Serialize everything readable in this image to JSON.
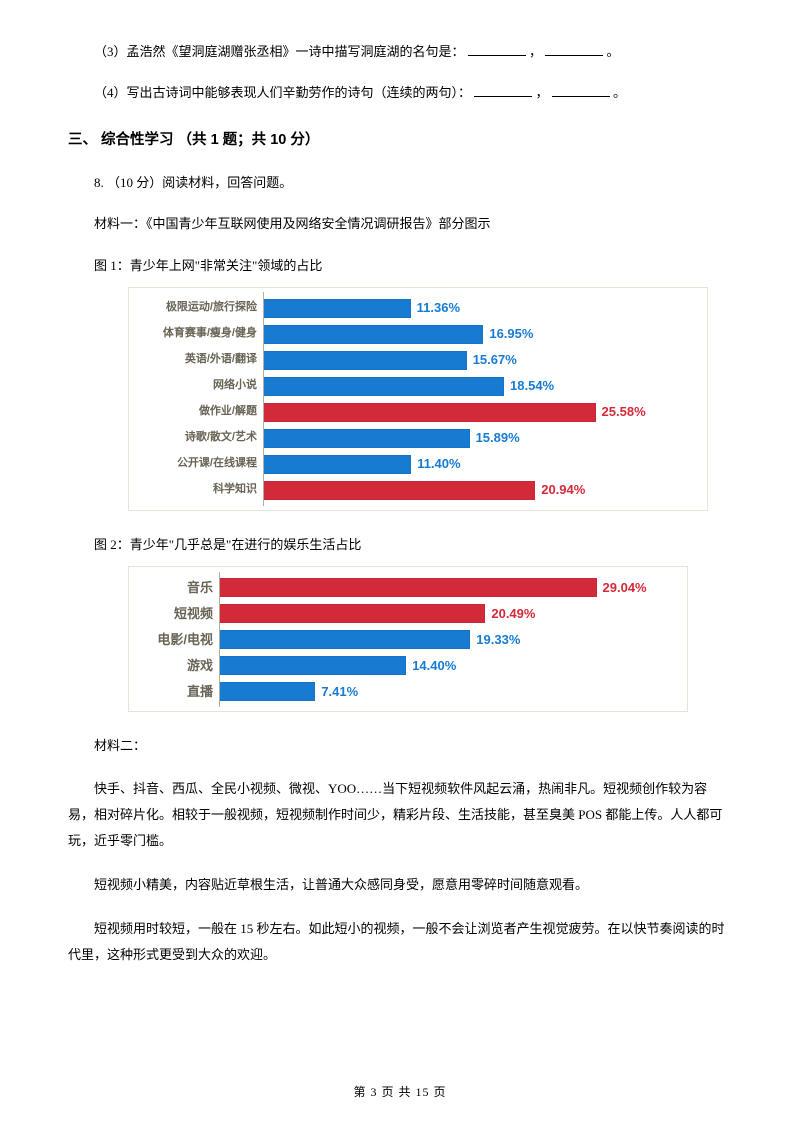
{
  "q3": "（3）孟浩然《望洞庭湖赠张丞相》一诗中描写洞庭湖的名句是：",
  "q4": "（4）写出古诗词中能够表现人们辛勤劳作的诗句（连续的两句）：",
  "punct_comma": "，",
  "punct_period": "。",
  "section3": "三、 综合性学习 （共 1 题；共 10 分）",
  "q8_head": "8. （10 分）阅读材料，回答问题。",
  "mat1": "材料一：《中国青少年互联网使用及网络安全情况调研报告》部分图示",
  "fig1_caption": "图 1：青少年上网\"非常关注\"领域的占比",
  "fig2_caption": "图 2：青少年\"几乎总是\"在进行的娱乐生活占比",
  "chart1": {
    "scale": 13,
    "max_label_width": 0,
    "rows": [
      {
        "label": "极限运动/旅行探险",
        "value": 11.36,
        "color": "#177bd2",
        "pct_color": "#177bd2"
      },
      {
        "label": "体育赛事/瘦身/健身",
        "value": 16.95,
        "color": "#177bd2",
        "pct_color": "#177bd2"
      },
      {
        "label": "英语/外语/翻译",
        "value": 15.67,
        "color": "#177bd2",
        "pct_color": "#177bd2"
      },
      {
        "label": "网络小说",
        "value": 18.54,
        "color": "#177bd2",
        "pct_color": "#177bd2"
      },
      {
        "label": "做作业/解题",
        "value": 25.58,
        "color": "#d32a3a",
        "pct_color": "#d32a3a"
      },
      {
        "label": "诗歌/散文/艺术",
        "value": 15.89,
        "color": "#177bd2",
        "pct_color": "#177bd2"
      },
      {
        "label": "公开课/在线课程",
        "value": 11.4,
        "color": "#177bd2",
        "pct_color": "#177bd2",
        "fmt": "11.40%"
      },
      {
        "label": "科学知识",
        "value": 20.94,
        "color": "#d32a3a",
        "pct_color": "#d32a3a"
      }
    ]
  },
  "chart2": {
    "scale": 13,
    "rows": [
      {
        "label": "音乐",
        "value": 29.04,
        "color": "#d32a3a",
        "pct_color": "#d32a3a"
      },
      {
        "label": "短视频",
        "value": 20.49,
        "color": "#d32a3a",
        "pct_color": "#d32a3a"
      },
      {
        "label": "电影/电视",
        "value": 19.33,
        "color": "#177bd2",
        "pct_color": "#177bd2"
      },
      {
        "label": "游戏",
        "value": 14.4,
        "color": "#177bd2",
        "pct_color": "#177bd2",
        "fmt": "14.40%"
      },
      {
        "label": "直播",
        "value": 7.41,
        "color": "#177bd2",
        "pct_color": "#177bd2"
      }
    ]
  },
  "mat2": "材料二：",
  "p1": "快手、抖音、西瓜、全民小视频、微视、YOO……当下短视频软件风起云涌，热闹非凡。短视频创作较为容易，相对碎片化。相较于一般视频，短视频制作时间少，精彩片段、生活技能，甚至臭美 POS 都能上传。人人都可玩，近乎零门槛。",
  "p2": "短视频小精美，内容贴近草根生活，让普通大众感同身受，愿意用零碎时间随意观看。",
  "p3": "短视频用时较短，一般在 15 秒左右。如此短小的视频，一般不会让浏览者产生视觉疲劳。在以快节奏阅读的时代里，这种形式更受到大众的欢迎。",
  "footer": "第 3 页 共 15 页"
}
